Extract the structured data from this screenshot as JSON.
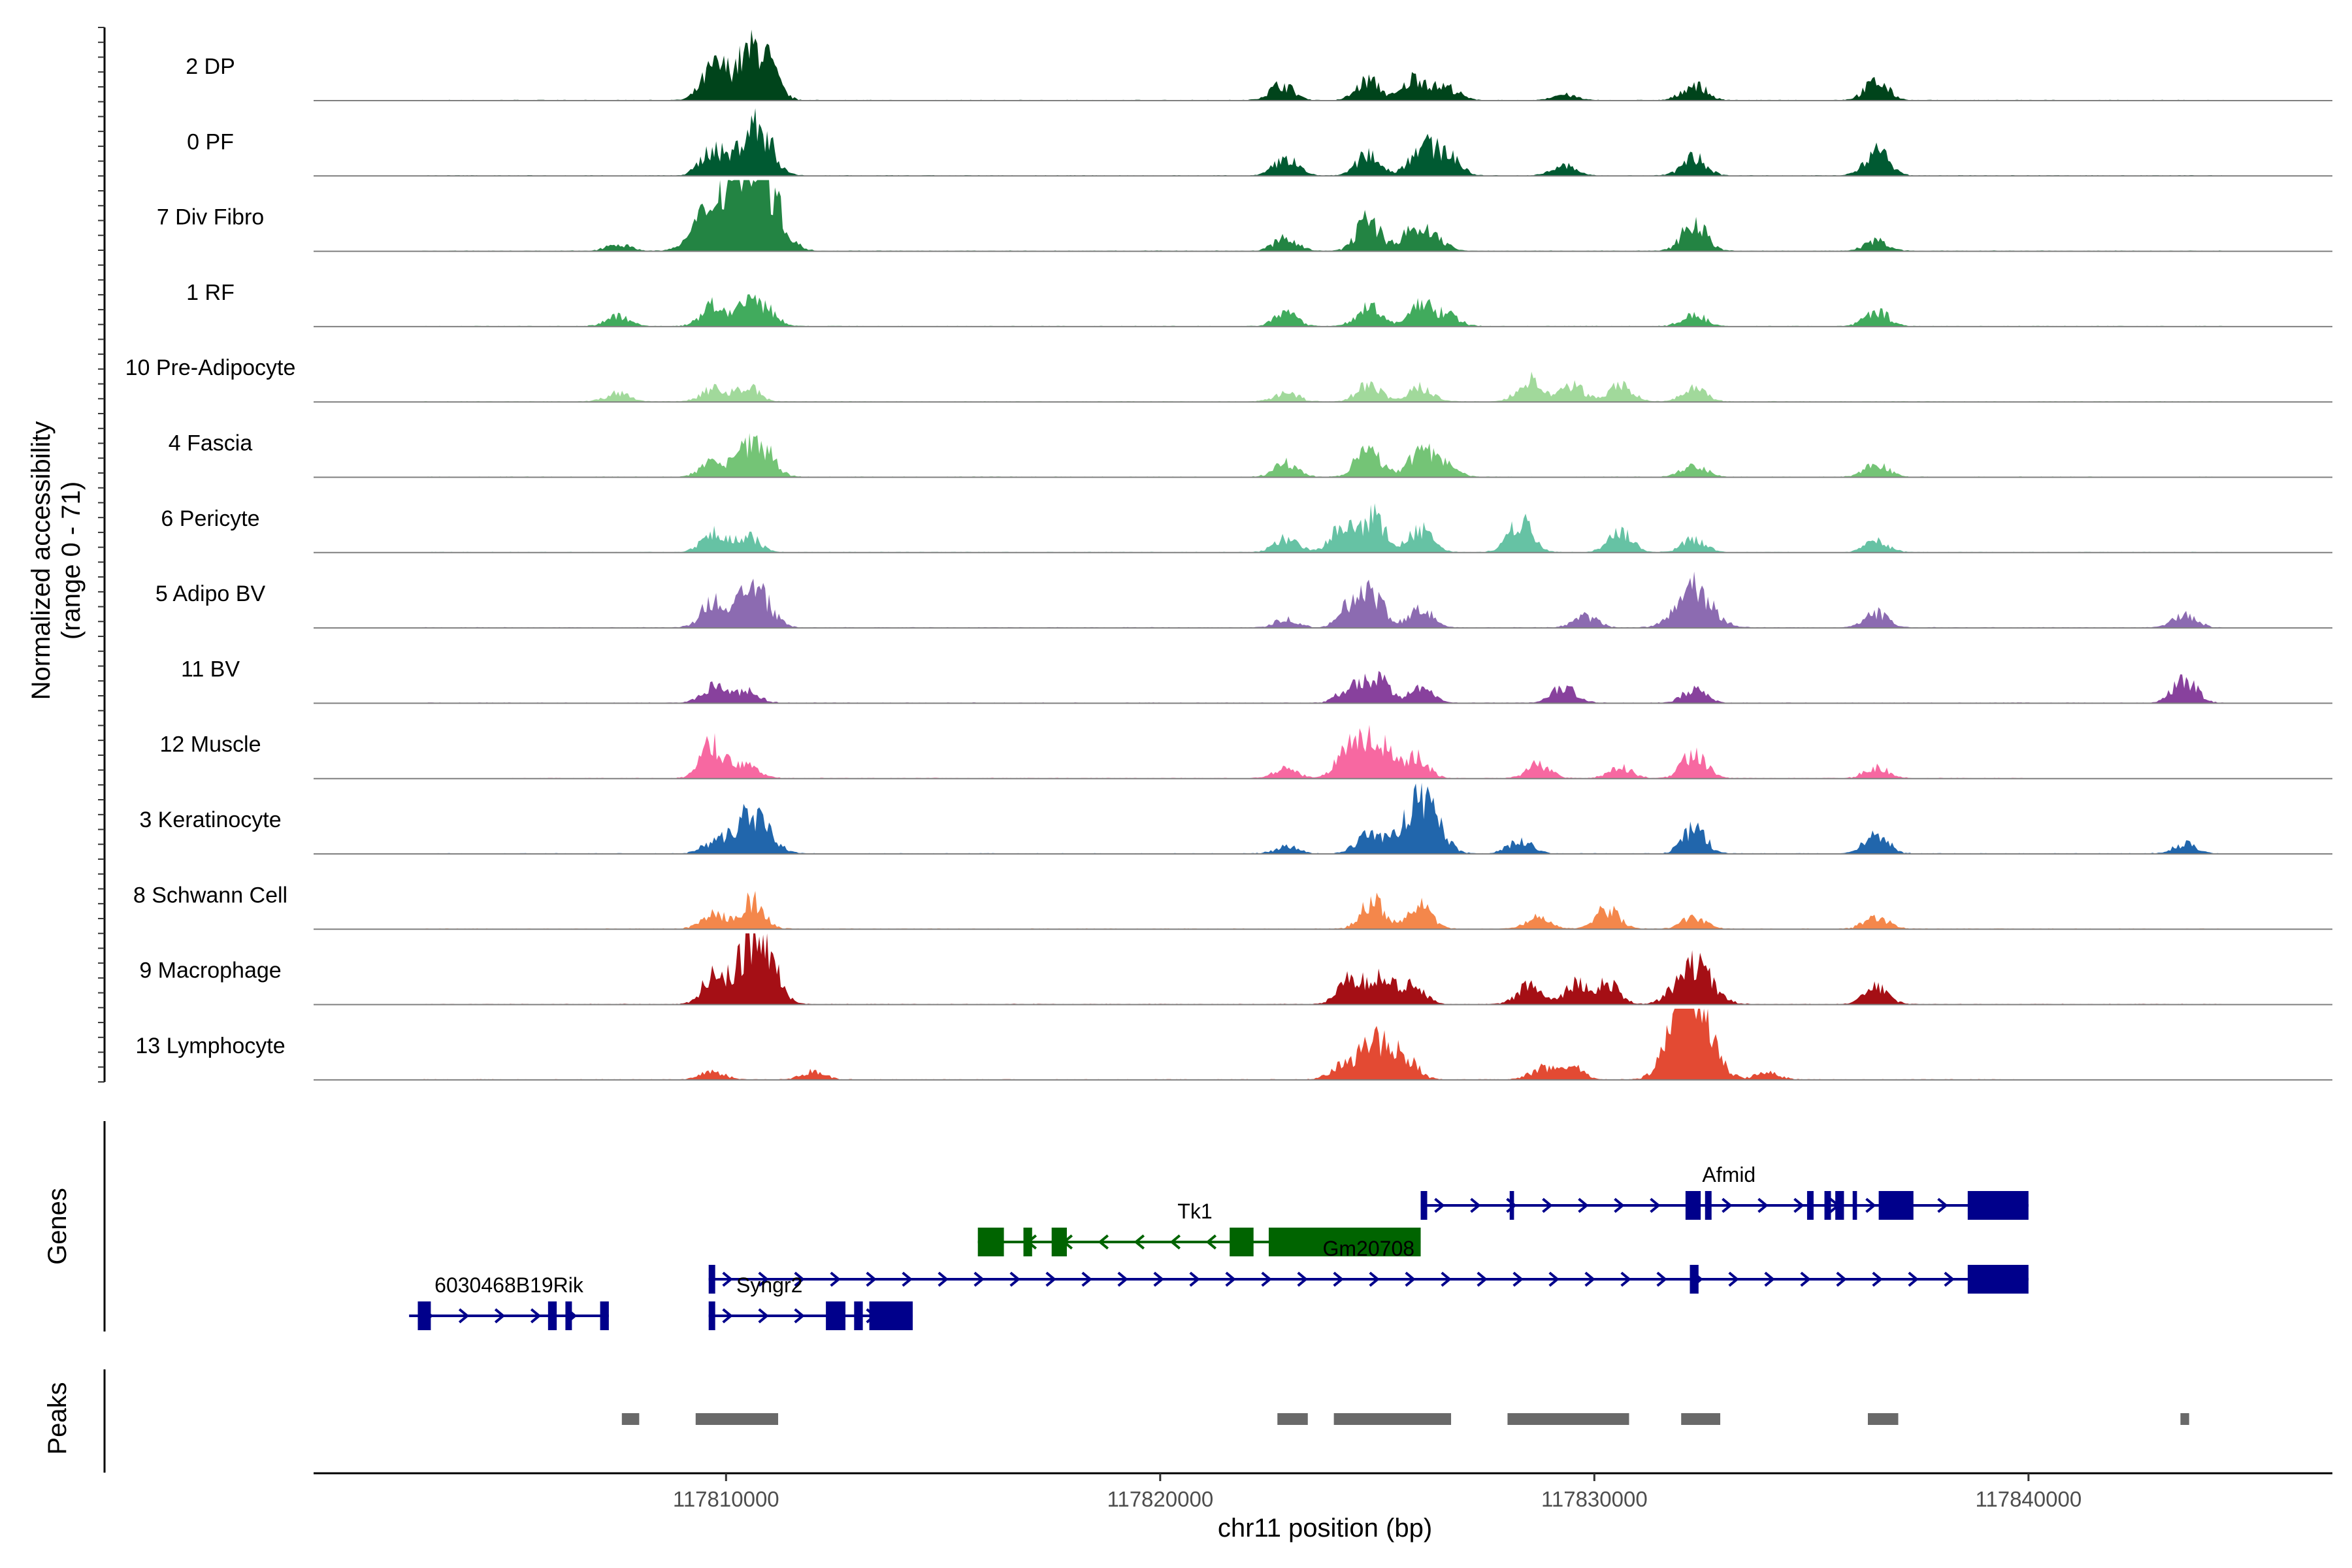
{
  "chart_data": {
    "type": "coverage",
    "chromosome": "chr11",
    "xlim": [
      117800500,
      117847000
    ],
    "x_ticks": [
      117810000,
      117820000,
      117830000,
      117840000
    ],
    "x_tick_labels": [
      "117810000",
      "117820000",
      "117830000",
      "117840000"
    ],
    "xlabel": "chr11 position (bp)",
    "ylabel_line1": "Normalized accessibility",
    "ylabel_line2": "(range 0 - 71)",
    "ylim": [
      0,
      71
    ],
    "panel_labels": {
      "genes": "Genes",
      "peaks": "Peaks"
    },
    "peak_centers_bp": [
      117810500,
      117826000,
      117832500,
      117836500
    ],
    "tracks": [
      {
        "name": "2 DP",
        "color": "#00441b",
        "data_start_bp": 117803000,
        "data_end_bp": 117844500,
        "peaks": [
          [
            117809700,
            0.4
          ],
          [
            117810500,
            0.55
          ],
          [
            117810900,
            0.35
          ],
          [
            117822800,
            0.22
          ],
          [
            117824800,
            0.28
          ],
          [
            117825900,
            0.32
          ],
          [
            117826600,
            0.18
          ],
          [
            117829300,
            0.08
          ],
          [
            117832300,
            0.22
          ],
          [
            117836500,
            0.26
          ]
        ]
      },
      {
        "name": "0 PF",
        "color": "#005a32",
        "data_start_bp": 117803000,
        "data_end_bp": 117844500,
        "peaks": [
          [
            117809700,
            0.38
          ],
          [
            117810500,
            0.5
          ],
          [
            117810900,
            0.42
          ],
          [
            117822900,
            0.24
          ],
          [
            117824800,
            0.3
          ],
          [
            117826000,
            0.4
          ],
          [
            117826600,
            0.32
          ],
          [
            117829300,
            0.14
          ],
          [
            117832300,
            0.26
          ],
          [
            117836500,
            0.36
          ]
        ]
      },
      {
        "name": "7 Div Fibro",
        "color": "#238443",
        "data_start_bp": 117803000,
        "data_end_bp": 117844500,
        "peaks": [
          [
            117807500,
            0.1
          ],
          [
            117809700,
            0.62
          ],
          [
            117810200,
            0.4
          ],
          [
            117810600,
            0.82
          ],
          [
            117810900,
            0.52
          ],
          [
            117822900,
            0.18
          ],
          [
            117824800,
            0.44
          ],
          [
            117825800,
            0.26
          ],
          [
            117826300,
            0.2
          ],
          [
            117832300,
            0.42
          ],
          [
            117836500,
            0.14
          ]
        ]
      },
      {
        "name": "1 RF",
        "color": "#41ab5d",
        "data_start_bp": 117803000,
        "data_end_bp": 117844500,
        "peaks": [
          [
            117807500,
            0.14
          ],
          [
            117809700,
            0.3
          ],
          [
            117810500,
            0.26
          ],
          [
            117810900,
            0.22
          ],
          [
            117822900,
            0.18
          ],
          [
            117824800,
            0.28
          ],
          [
            117826000,
            0.3
          ],
          [
            117826600,
            0.16
          ],
          [
            117832300,
            0.16
          ],
          [
            117836500,
            0.22
          ]
        ]
      },
      {
        "name": "10 Pre-Adipocyte",
        "color": "#a1d99b",
        "data_start_bp": 117803000,
        "data_end_bp": 117844500,
        "peaks": [
          [
            117807500,
            0.12
          ],
          [
            117809700,
            0.18
          ],
          [
            117810500,
            0.2
          ],
          [
            117822900,
            0.14
          ],
          [
            117824800,
            0.24
          ],
          [
            117826000,
            0.2
          ],
          [
            117828500,
            0.3
          ],
          [
            117829500,
            0.22
          ],
          [
            117830600,
            0.24
          ],
          [
            117832300,
            0.18
          ]
        ]
      },
      {
        "name": "4 Fascia",
        "color": "#74c476",
        "data_start_bp": 117803000,
        "data_end_bp": 117844500,
        "peaks": [
          [
            117809700,
            0.22
          ],
          [
            117810500,
            0.38
          ],
          [
            117810900,
            0.3
          ],
          [
            117822900,
            0.2
          ],
          [
            117824800,
            0.46
          ],
          [
            117826000,
            0.38
          ],
          [
            117826600,
            0.16
          ],
          [
            117832300,
            0.18
          ],
          [
            117836500,
            0.18
          ]
        ]
      },
      {
        "name": "6 Pericyte",
        "color": "#66c2a4",
        "data_start_bp": 117803000,
        "data_end_bp": 117844500,
        "peaks": [
          [
            117809700,
            0.28
          ],
          [
            117810500,
            0.24
          ],
          [
            117822900,
            0.2
          ],
          [
            117824200,
            0.34
          ],
          [
            117824900,
            0.5
          ],
          [
            117826000,
            0.32
          ],
          [
            117828300,
            0.46
          ],
          [
            117830600,
            0.32
          ],
          [
            117832300,
            0.18
          ],
          [
            117836500,
            0.16
          ]
        ]
      },
      {
        "name": "5 Adipo BV",
        "color": "#8c6bb1",
        "data_start_bp": 117803000,
        "data_end_bp": 117844500,
        "peaks": [
          [
            117809700,
            0.36
          ],
          [
            117810500,
            0.46
          ],
          [
            117810900,
            0.26
          ],
          [
            117822900,
            0.12
          ],
          [
            117824400,
            0.3
          ],
          [
            117824900,
            0.44
          ],
          [
            117826000,
            0.28
          ],
          [
            117829800,
            0.16
          ],
          [
            117832300,
            0.56
          ],
          [
            117836500,
            0.2
          ],
          [
            117843600,
            0.18
          ]
        ]
      },
      {
        "name": "11 BV",
        "color": "#88419d",
        "data_start_bp": 117803000,
        "data_end_bp": 117844500,
        "peaks": [
          [
            117809700,
            0.22
          ],
          [
            117810500,
            0.16
          ],
          [
            117824400,
            0.24
          ],
          [
            117825000,
            0.34
          ],
          [
            117826000,
            0.22
          ],
          [
            117829300,
            0.24
          ],
          [
            117832300,
            0.18
          ],
          [
            117843600,
            0.34
          ]
        ]
      },
      {
        "name": "12 Muscle",
        "color": "#f768a1",
        "data_start_bp": 117805000,
        "data_end_bp": 117840000,
        "peaks": [
          [
            117809700,
            0.48
          ],
          [
            117810500,
            0.22
          ],
          [
            117822900,
            0.14
          ],
          [
            117824300,
            0.3
          ],
          [
            117824900,
            0.56
          ],
          [
            117825900,
            0.28
          ],
          [
            117828700,
            0.2
          ],
          [
            117830600,
            0.16
          ],
          [
            117832300,
            0.36
          ],
          [
            117836500,
            0.16
          ]
        ]
      },
      {
        "name": "3 Keratinocyte",
        "color": "#2166ac",
        "data_start_bp": 117803000,
        "data_end_bp": 117844500,
        "peaks": [
          [
            117809700,
            0.14
          ],
          [
            117810600,
            0.56
          ],
          [
            117822900,
            0.1
          ],
          [
            117824800,
            0.28
          ],
          [
            117825900,
            0.62
          ],
          [
            117826300,
            0.3
          ],
          [
            117828300,
            0.2
          ],
          [
            117832300,
            0.34
          ],
          [
            117836500,
            0.28
          ],
          [
            117843600,
            0.14
          ]
        ]
      },
      {
        "name": "8 Schwann Cell",
        "color": "#f4874b",
        "data_start_bp": 117803000,
        "data_end_bp": 117844500,
        "peaks": [
          [
            117809700,
            0.24
          ],
          [
            117810600,
            0.4
          ],
          [
            117824900,
            0.4
          ],
          [
            117826000,
            0.32
          ],
          [
            117828700,
            0.16
          ],
          [
            117830300,
            0.28
          ],
          [
            117832300,
            0.16
          ],
          [
            117836500,
            0.18
          ]
        ]
      },
      {
        "name": "9 Macrophage",
        "color": "#a50f15",
        "data_start_bp": 117803000,
        "data_end_bp": 117844500,
        "peaks": [
          [
            117809700,
            0.34
          ],
          [
            117810600,
            0.76
          ],
          [
            117810900,
            0.4
          ],
          [
            117824400,
            0.4
          ],
          [
            117825100,
            0.34
          ],
          [
            117825800,
            0.28
          ],
          [
            117828500,
            0.26
          ],
          [
            117829600,
            0.28
          ],
          [
            117830300,
            0.28
          ],
          [
            117832300,
            0.56
          ],
          [
            117836500,
            0.24
          ]
        ]
      },
      {
        "name": "13 Lymphocyte",
        "color": "#e34a33",
        "data_start_bp": 117803000,
        "data_end_bp": 117840000,
        "peaks": [
          [
            117809700,
            0.12
          ],
          [
            117812000,
            0.12
          ],
          [
            117824200,
            0.18
          ],
          [
            117825000,
            0.54
          ],
          [
            117825700,
            0.2
          ],
          [
            117828800,
            0.16
          ],
          [
            117829500,
            0.16
          ],
          [
            117832100,
            0.86
          ],
          [
            117832400,
            0.56
          ],
          [
            117834000,
            0.1
          ]
        ]
      }
    ],
    "genes": [
      {
        "name": "Afmid",
        "strand": "+",
        "color": "#00008b",
        "row": 1,
        "start": 117826000,
        "end": 117840000,
        "exons": [
          [
            117826000,
            117826150
          ],
          [
            117828050,
            117828150
          ],
          [
            117832100,
            117832450
          ],
          [
            117832550,
            117832700
          ],
          [
            117834900,
            117835050
          ],
          [
            117835300,
            117835450
          ],
          [
            117835550,
            117835750
          ],
          [
            117835950,
            117836050
          ],
          [
            117836550,
            117837350
          ],
          [
            117838600,
            117840000
          ]
        ],
        "label_bp": 117833100,
        "label_pos": "above"
      },
      {
        "name": "Tk1",
        "strand": "-",
        "color": "#006400",
        "row": 2,
        "start": 117815800,
        "end": 117826000,
        "exons": [
          [
            117815800,
            117816400
          ],
          [
            117816850,
            117817050
          ],
          [
            117817500,
            117817850
          ],
          [
            117821600,
            117822150
          ],
          [
            117822500,
            117826000
          ]
        ],
        "label_bp": 117820800,
        "label_pos": "above"
      },
      {
        "name": "Gm20708",
        "strand": "+",
        "color": "#00008b",
        "row": 3,
        "start": 117809600,
        "end": 117840000,
        "exons": [
          [
            117809600,
            117809750
          ],
          [
            117832200,
            117832400
          ],
          [
            117838600,
            117840000
          ]
        ],
        "label_bp": 117824800,
        "label_pos": "above"
      },
      {
        "name": "6030468B19Rik",
        "strand": "+",
        "color": "#00008b",
        "row": 4,
        "start": 117802700,
        "end": 117807300,
        "exons": [
          [
            117802900,
            117803200
          ],
          [
            117805900,
            117806100
          ],
          [
            117806300,
            117806450
          ],
          [
            117807100,
            117807300
          ]
        ],
        "label_bp": 117805000,
        "label_pos": "above"
      },
      {
        "name": "Syngr2",
        "strand": "+",
        "color": "#00008b",
        "row": 4,
        "start": 117809600,
        "end": 117814300,
        "exons": [
          [
            117809600,
            117809750
          ],
          [
            117812300,
            117812750
          ],
          [
            117812950,
            117813150
          ],
          [
            117813300,
            117814300
          ]
        ],
        "label_bp": 117811000,
        "label_pos": "above"
      }
    ],
    "peak_regions": [
      [
        117807600,
        117808000
      ],
      [
        117809300,
        117811200
      ],
      [
        117822700,
        117823400
      ],
      [
        117824000,
        117826700
      ],
      [
        117828000,
        117830800
      ],
      [
        117832000,
        117832900
      ],
      [
        117836300,
        117837000
      ],
      [
        117843500,
        117843700
      ]
    ]
  }
}
